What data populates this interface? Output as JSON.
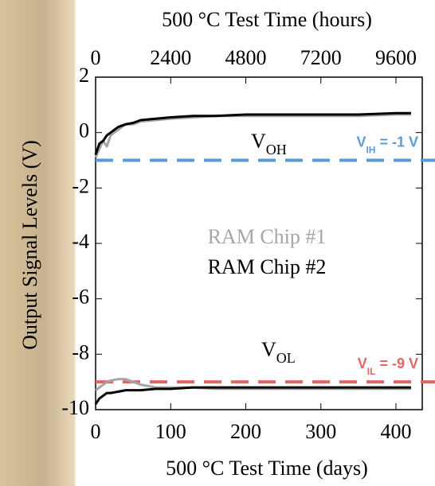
{
  "chart_data": {
    "type": "line",
    "title_top": "500 °C Test Time (hours)",
    "xlabel": "500 °C Test Time (days)",
    "ylabel": "Output Signal Levels (V)",
    "xlim": [
      0,
      435
    ],
    "xticks": [
      0,
      100,
      200,
      300,
      400
    ],
    "x2lim": [
      0,
      10440
    ],
    "x2ticks": [
      0,
      2400,
      4800,
      7200,
      9600
    ],
    "ylim": [
      -10,
      2
    ],
    "yticks": [
      2,
      0,
      -2,
      -4,
      -6,
      -8,
      -10
    ],
    "x": [
      0,
      5,
      10,
      15,
      20,
      30,
      40,
      50,
      60,
      80,
      100,
      130,
      160,
      200,
      250,
      300,
      350,
      400,
      420
    ],
    "series": [
      {
        "name": "RAM Chip #1",
        "color": "#a6a6a6",
        "values": [
          -0.9,
          -0.6,
          -0.3,
          -0.5,
          -0.1,
          0.1,
          0.3,
          0.3,
          0.4,
          0.45,
          0.5,
          0.55,
          0.6,
          0.6,
          0.6,
          0.6,
          0.6,
          0.65,
          0.65
        ],
        "values_low": [
          -9.3,
          -9.2,
          -9.1,
          -9.0,
          -8.95,
          -8.9,
          -8.9,
          -9.0,
          -9.1,
          -9.2,
          -9.2,
          -9.2,
          -9.25,
          -9.25,
          -9.25,
          -9.25,
          -9.25,
          -9.25,
          -9.25
        ]
      },
      {
        "name": "RAM Chip #2",
        "color": "#000000",
        "values": [
          -0.8,
          -0.4,
          -0.3,
          -0.1,
          0.0,
          0.2,
          0.3,
          0.35,
          0.45,
          0.5,
          0.55,
          0.6,
          0.6,
          0.65,
          0.65,
          0.65,
          0.65,
          0.7,
          0.7
        ],
        "values_low": [
          -9.8,
          -9.6,
          -9.5,
          -9.4,
          -9.4,
          -9.35,
          -9.3,
          -9.3,
          -9.3,
          -9.25,
          -9.25,
          -9.2,
          -9.2,
          -9.2,
          -9.2,
          -9.2,
          -9.2,
          -9.2,
          -9.2
        ]
      }
    ],
    "reference_lines": [
      {
        "value": -1,
        "color": "#5b9bd5",
        "label": {
          "main": "V",
          "sub": "IH",
          "rest": " = -1 V"
        }
      },
      {
        "value": -9,
        "color": "#e06666",
        "label": {
          "main": "V",
          "sub": "IL",
          "rest": " = -9 V"
        }
      }
    ],
    "annotations": [
      {
        "main": "V",
        "sub": "OH"
      },
      {
        "main": "V",
        "sub": "OL"
      }
    ]
  }
}
